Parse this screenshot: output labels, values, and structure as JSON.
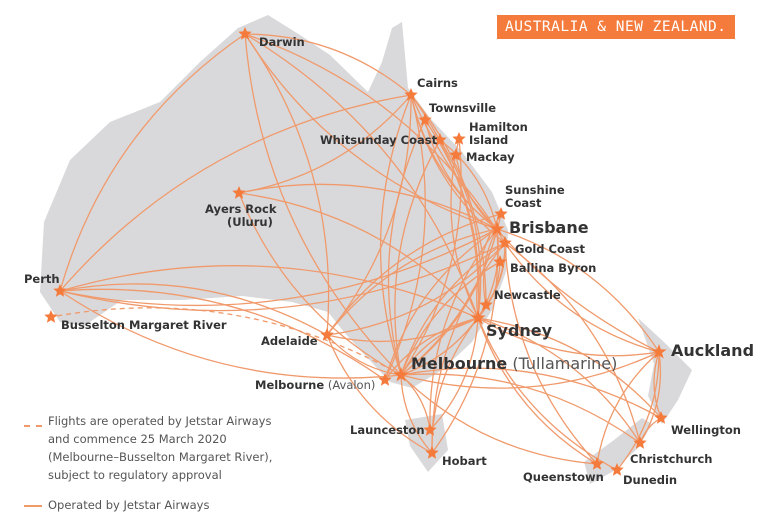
{
  "title": "AUSTRALIA & NEW ZEALAND.",
  "colors": {
    "accent": "#f47b3c",
    "route": "#f09a6c",
    "land": "#d9d9db"
  },
  "legend": {
    "planned_line_1": "Flights are operated by Jetstar Airways",
    "planned_line_2": "and commence 25 March 2020",
    "planned_line_3": "(Melbourne–Busselton Margaret River),",
    "planned_line_4": "subject to regulatory approval",
    "operated": "Operated by Jetstar Airways"
  },
  "cities": [
    {
      "id": "darwin",
      "name": "Darwin"
    },
    {
      "id": "cairns",
      "name": "Cairns"
    },
    {
      "id": "townsville",
      "name": "Townsville"
    },
    {
      "id": "whitsunday",
      "name": "Whitsunday Coast"
    },
    {
      "id": "hamilton",
      "name": "Hamilton",
      "name2": "Island"
    },
    {
      "id": "mackay",
      "name": "Mackay"
    },
    {
      "id": "ayers",
      "name": "Ayers Rock",
      "name2": "(Uluru)"
    },
    {
      "id": "sunshine",
      "name": "Sunshine",
      "name2": "Coast"
    },
    {
      "id": "brisbane",
      "name": "Brisbane",
      "major": true
    },
    {
      "id": "goldcoast",
      "name": "Gold Coast"
    },
    {
      "id": "ballina",
      "name": "Ballina Byron"
    },
    {
      "id": "perth",
      "name": "Perth"
    },
    {
      "id": "busselton",
      "name": "Busselton Margaret River"
    },
    {
      "id": "newcastle",
      "name": "Newcastle"
    },
    {
      "id": "sydney",
      "name": "Sydney",
      "major": true
    },
    {
      "id": "adelaide",
      "name": "Adelaide"
    },
    {
      "id": "melbourne",
      "name": "Melbourne",
      "suffix": " (Tullamarine)",
      "major": true
    },
    {
      "id": "avalon",
      "name": "Melbourne",
      "suffix": " (Avalon)"
    },
    {
      "id": "launceston",
      "name": "Launceston"
    },
    {
      "id": "hobart",
      "name": "Hobart"
    },
    {
      "id": "auckland",
      "name": "Auckland",
      "major": true
    },
    {
      "id": "wellington",
      "name": "Wellington"
    },
    {
      "id": "christchurch",
      "name": "Christchurch"
    },
    {
      "id": "queenstown",
      "name": "Queenstown"
    },
    {
      "id": "dunedin",
      "name": "Dunedin"
    }
  ],
  "routes": [
    [
      "darwin",
      "cairns"
    ],
    [
      "darwin",
      "brisbane"
    ],
    [
      "darwin",
      "sydney"
    ],
    [
      "darwin",
      "melbourne"
    ],
    [
      "darwin",
      "adelaide"
    ],
    [
      "darwin",
      "perth"
    ],
    [
      "darwin",
      "goldcoast"
    ],
    [
      "cairns",
      "perth"
    ],
    [
      "cairns",
      "ayers"
    ],
    [
      "cairns",
      "brisbane"
    ],
    [
      "cairns",
      "sydney"
    ],
    [
      "cairns",
      "melbourne"
    ],
    [
      "cairns",
      "adelaide"
    ],
    [
      "cairns",
      "goldcoast"
    ],
    [
      "cairns",
      "newcastle"
    ],
    [
      "cairns",
      "auckland"
    ],
    [
      "cairns",
      "avalon"
    ],
    [
      "townsville",
      "brisbane"
    ],
    [
      "townsville",
      "sydney"
    ],
    [
      "townsville",
      "melbourne"
    ],
    [
      "whitsunday",
      "sydney"
    ],
    [
      "whitsunday",
      "melbourne"
    ],
    [
      "whitsunday",
      "brisbane"
    ],
    [
      "hamilton",
      "sydney"
    ],
    [
      "hamilton",
      "melbourne"
    ],
    [
      "mackay",
      "brisbane"
    ],
    [
      "ayers",
      "sydney"
    ],
    [
      "ayers",
      "melbourne"
    ],
    [
      "ayers",
      "brisbane"
    ],
    [
      "perth",
      "brisbane"
    ],
    [
      "perth",
      "sydney"
    ],
    [
      "perth",
      "melbourne"
    ],
    [
      "perth",
      "adelaide"
    ],
    [
      "perth",
      "goldcoast"
    ],
    [
      "perth",
      "avalon"
    ],
    [
      "sunshine",
      "sydney"
    ],
    [
      "sunshine",
      "melbourne"
    ],
    [
      "sunshine",
      "adelaide"
    ],
    [
      "brisbane",
      "melbourne"
    ],
    [
      "brisbane",
      "adelaide"
    ],
    [
      "brisbane",
      "hobart"
    ],
    [
      "brisbane",
      "launceston"
    ],
    [
      "brisbane",
      "auckland"
    ],
    [
      "brisbane",
      "newcastle"
    ],
    [
      "brisbane",
      "sydney"
    ],
    [
      "brisbane",
      "avalon"
    ],
    [
      "goldcoast",
      "sydney"
    ],
    [
      "goldcoast",
      "melbourne"
    ],
    [
      "goldcoast",
      "adelaide"
    ],
    [
      "goldcoast",
      "auckland"
    ],
    [
      "goldcoast",
      "christchurch"
    ],
    [
      "goldcoast",
      "queenstown"
    ],
    [
      "goldcoast",
      "newcastle"
    ],
    [
      "goldcoast",
      "hobart"
    ],
    [
      "ballina",
      "sydney"
    ],
    [
      "ballina",
      "melbourne"
    ],
    [
      "newcastle",
      "melbourne"
    ],
    [
      "sydney",
      "melbourne"
    ],
    [
      "sydney",
      "adelaide"
    ],
    [
      "sydney",
      "hobart"
    ],
    [
      "sydney",
      "launceston"
    ],
    [
      "sydney",
      "auckland"
    ],
    [
      "sydney",
      "christchurch"
    ],
    [
      "sydney",
      "queenstown"
    ],
    [
      "sydney",
      "wellington"
    ],
    [
      "sydney",
      "dunedin"
    ],
    [
      "melbourne",
      "adelaide"
    ],
    [
      "melbourne",
      "hobart"
    ],
    [
      "melbourne",
      "launceston"
    ],
    [
      "melbourne",
      "auckland"
    ],
    [
      "melbourne",
      "christchurch"
    ],
    [
      "melbourne",
      "queenstown"
    ],
    [
      "melbourne",
      "wellington"
    ],
    [
      "adelaide",
      "hobart"
    ],
    [
      "avalon",
      "sydney"
    ],
    [
      "auckland",
      "wellington"
    ],
    [
      "auckland",
      "christchurch"
    ],
    [
      "auckland",
      "queenstown"
    ],
    [
      "auckland",
      "dunedin"
    ],
    [
      "wellington",
      "christchurch"
    ]
  ],
  "planned_routes": [
    [
      "melbourne",
      "busselton"
    ]
  ]
}
